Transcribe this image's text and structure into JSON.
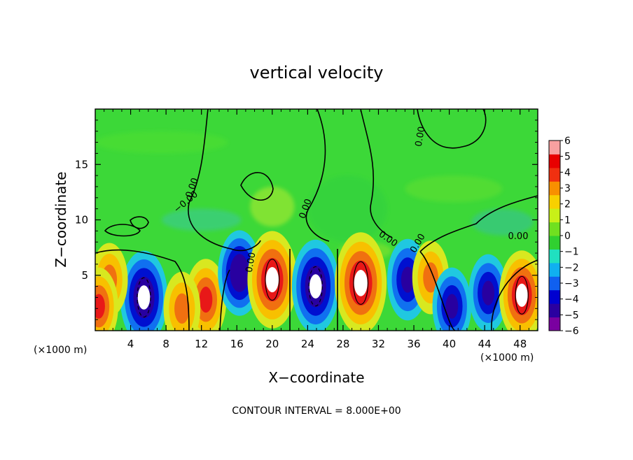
{
  "chart_data": {
    "type": "heatmap",
    "title": "vertical velocity",
    "xlabel": "X−coordinate",
    "ylabel": "Z−coordinate",
    "x_unit_left": "(×1000 m)",
    "x_unit_right": "(×1000 m)",
    "xlim": [
      0,
      50
    ],
    "ylim": [
      0,
      20
    ],
    "x_ticks": [
      4,
      8,
      12,
      16,
      20,
      24,
      28,
      32,
      36,
      40,
      44,
      48
    ],
    "y_ticks": [
      5,
      10,
      15
    ],
    "colorbar": {
      "min": -6,
      "max": 6,
      "ticks": [
        6,
        5,
        4,
        3,
        2,
        1,
        0,
        -1,
        -2,
        -3,
        -4,
        -5,
        -6
      ],
      "tick_labels": [
        "6",
        "5",
        "4",
        "3",
        "2",
        "1",
        "0",
        "−1",
        "−2",
        "−3",
        "−4",
        "−5",
        "−6"
      ],
      "colors": [
        "#7a00a0",
        "#2a00a0",
        "#0000d0",
        "#1060f0",
        "#10b0f0",
        "#20e0c0",
        "#30d030",
        "#70e020",
        "#c8f018",
        "#f8d000",
        "#f89000",
        "#f03010",
        "#e80000",
        "#f8a0a0"
      ]
    },
    "contour_interval": "CONTOUR INTERVAL = 8.000E+00",
    "contour_labels": [
      "0.00",
      "0.00",
      "0.00",
      "0.00",
      "0.00",
      "0.00",
      "0.00",
      "−0.00"
    ],
    "cells": [
      {
        "x": 5.5,
        "z": 3.0,
        "w": -9
      },
      {
        "x": 12.5,
        "z": 2.8,
        "w": 6
      },
      {
        "x": 16.3,
        "z": 5.2,
        "w": -7
      },
      {
        "x": 20.0,
        "z": 4.6,
        "w": 10
      },
      {
        "x": 24.9,
        "z": 4.0,
        "w": -9
      },
      {
        "x": 30.0,
        "z": 4.3,
        "w": 11
      },
      {
        "x": 35.3,
        "z": 4.6,
        "w": -6
      },
      {
        "x": 37.9,
        "z": 4.8,
        "w": 4
      },
      {
        "x": 40.3,
        "z": 2.2,
        "w": -5
      },
      {
        "x": 44.4,
        "z": 3.4,
        "w": -5
      },
      {
        "x": 48.2,
        "z": 3.2,
        "w": 8
      },
      {
        "x": 1.6,
        "z": 4.6,
        "w": 4
      },
      {
        "x": 0.4,
        "z": 2.2,
        "w": 5
      },
      {
        "x": 9.8,
        "z": 2.0,
        "w": 4
      }
    ]
  }
}
